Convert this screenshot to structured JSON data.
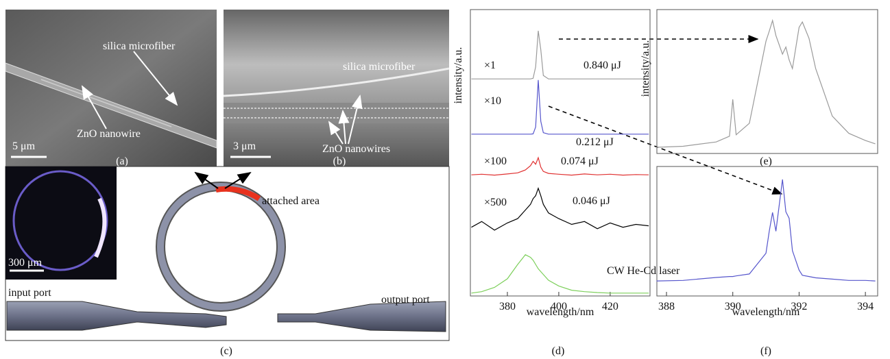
{
  "panels": {
    "a": {
      "label": "(a)",
      "fiber": "silica microfiber",
      "nanowire": "ZnO nanowire",
      "scale": "5 μm"
    },
    "b": {
      "label": "(b)",
      "fiber": "silica microfiber",
      "nanowire": "ZnO nanowires",
      "scale": "3 μm"
    },
    "c": {
      "label": "(c)",
      "attached": "attached area",
      "input": "input port",
      "output": "output port",
      "scale": "300 μm"
    }
  },
  "chart_data": [
    {
      "type": "line",
      "label": "(d)",
      "xlabel": "wavelength/nm",
      "ylabel": "intensity/a.u.",
      "x": [
        366,
        370,
        375,
        380,
        384,
        387,
        389,
        390,
        391,
        392,
        393,
        394,
        396,
        400,
        405,
        410,
        415,
        420,
        425,
        430,
        435
      ],
      "xlim": [
        365.6,
        435.5
      ],
      "xticks": [
        380,
        400,
        420
      ],
      "ylim": [
        0,
        10
      ],
      "series": [
        {
          "name": "×1",
          "energy": "0.840 μJ",
          "color": "#9a9a9a",
          "values": [
            7.58,
            7.58,
            7.58,
            7.58,
            7.58,
            7.58,
            7.58,
            7.6,
            8.0,
            9.26,
            8.6,
            7.7,
            7.58,
            7.58,
            7.58,
            7.58,
            7.58,
            7.58,
            7.58,
            7.58,
            7.58
          ]
        },
        {
          "name": "×10",
          "energy": "0.212 μJ",
          "color": "#5555cc",
          "values": [
            5.65,
            5.65,
            5.65,
            5.65,
            5.65,
            5.65,
            5.65,
            5.66,
            5.9,
            7.54,
            6.1,
            5.7,
            5.65,
            5.65,
            5.65,
            5.65,
            5.65,
            5.65,
            5.65,
            5.65,
            5.65
          ]
        },
        {
          "name": "×100",
          "energy": "0.074 μJ",
          "color": "#e03030",
          "values": [
            4.23,
            4.25,
            4.22,
            4.26,
            4.3,
            4.4,
            4.55,
            4.7,
            4.6,
            4.83,
            4.5,
            4.35,
            4.28,
            4.25,
            4.22,
            4.26,
            4.23,
            4.25,
            4.22,
            4.24,
            4.23
          ]
        },
        {
          "name": "×500",
          "energy": "0.046 μJ",
          "color": "#000000",
          "values": [
            2.4,
            2.6,
            2.3,
            2.55,
            2.7,
            3.0,
            3.2,
            3.4,
            3.5,
            3.76,
            3.5,
            3.2,
            2.9,
            2.7,
            2.5,
            2.6,
            2.35,
            2.55,
            2.4,
            2.5,
            2.45
          ]
        },
        {
          "name": "CW He-Cd laser",
          "color": "#7ccf5a",
          "values": [
            0.1,
            0.15,
            0.3,
            0.6,
            1.1,
            1.44,
            1.35,
            1.25,
            1.1,
            0.95,
            0.85,
            0.75,
            0.55,
            0.35,
            0.2,
            0.15,
            0.12,
            0.1,
            0.1,
            0.1,
            0.1
          ]
        }
      ]
    },
    {
      "type": "line",
      "label": "(e)",
      "ylabel": "intensity/a.u.",
      "x": [
        387.7,
        388.5,
        389.5,
        389.9,
        390,
        390.1,
        390.5,
        391,
        391.1,
        391.2,
        391.3,
        391.5,
        391.6,
        391.7,
        391.8,
        392,
        392.1,
        392.3,
        392.5,
        393,
        393.5,
        394,
        394.3
      ],
      "xlim": [
        387.71,
        394.37
      ],
      "ylim": [
        0,
        10
      ],
      "series": [
        {
          "color": "#9a9a9a",
          "values": [
            0.43,
            0.5,
            0.8,
            1.2,
            3.76,
            1.3,
            2.1,
            7.8,
            8.5,
            9.24,
            8.2,
            6.9,
            7.4,
            6.5,
            5.9,
            8.76,
            9.14,
            8.0,
            5.9,
            2.6,
            1.4,
            0.9,
            0.67
          ]
        }
      ]
    },
    {
      "type": "line",
      "label": "(f)",
      "xlabel": "wavelength/nm",
      "x": [
        387.7,
        388.5,
        389.5,
        389.9,
        390,
        390.1,
        390.5,
        391,
        391.1,
        391.2,
        391.3,
        391.5,
        391.6,
        391.7,
        391.8,
        392,
        392.1,
        392.3,
        392.5,
        393,
        393.5,
        394,
        394.3
      ],
      "xlim": [
        387.71,
        394.37
      ],
      "xticks": [
        388,
        390,
        392,
        394
      ],
      "ylim": [
        0,
        10
      ],
      "series": [
        {
          "color": "#5555cc",
          "values": [
            1.16,
            1.2,
            1.43,
            1.5,
            1.5,
            1.55,
            1.7,
            3.3,
            5.0,
            6.45,
            5.0,
            9,
            6.5,
            6.0,
            3.5,
            2.0,
            1.6,
            1.5,
            1.4,
            1.3,
            1.2,
            1.2,
            1.16
          ]
        }
      ]
    }
  ]
}
